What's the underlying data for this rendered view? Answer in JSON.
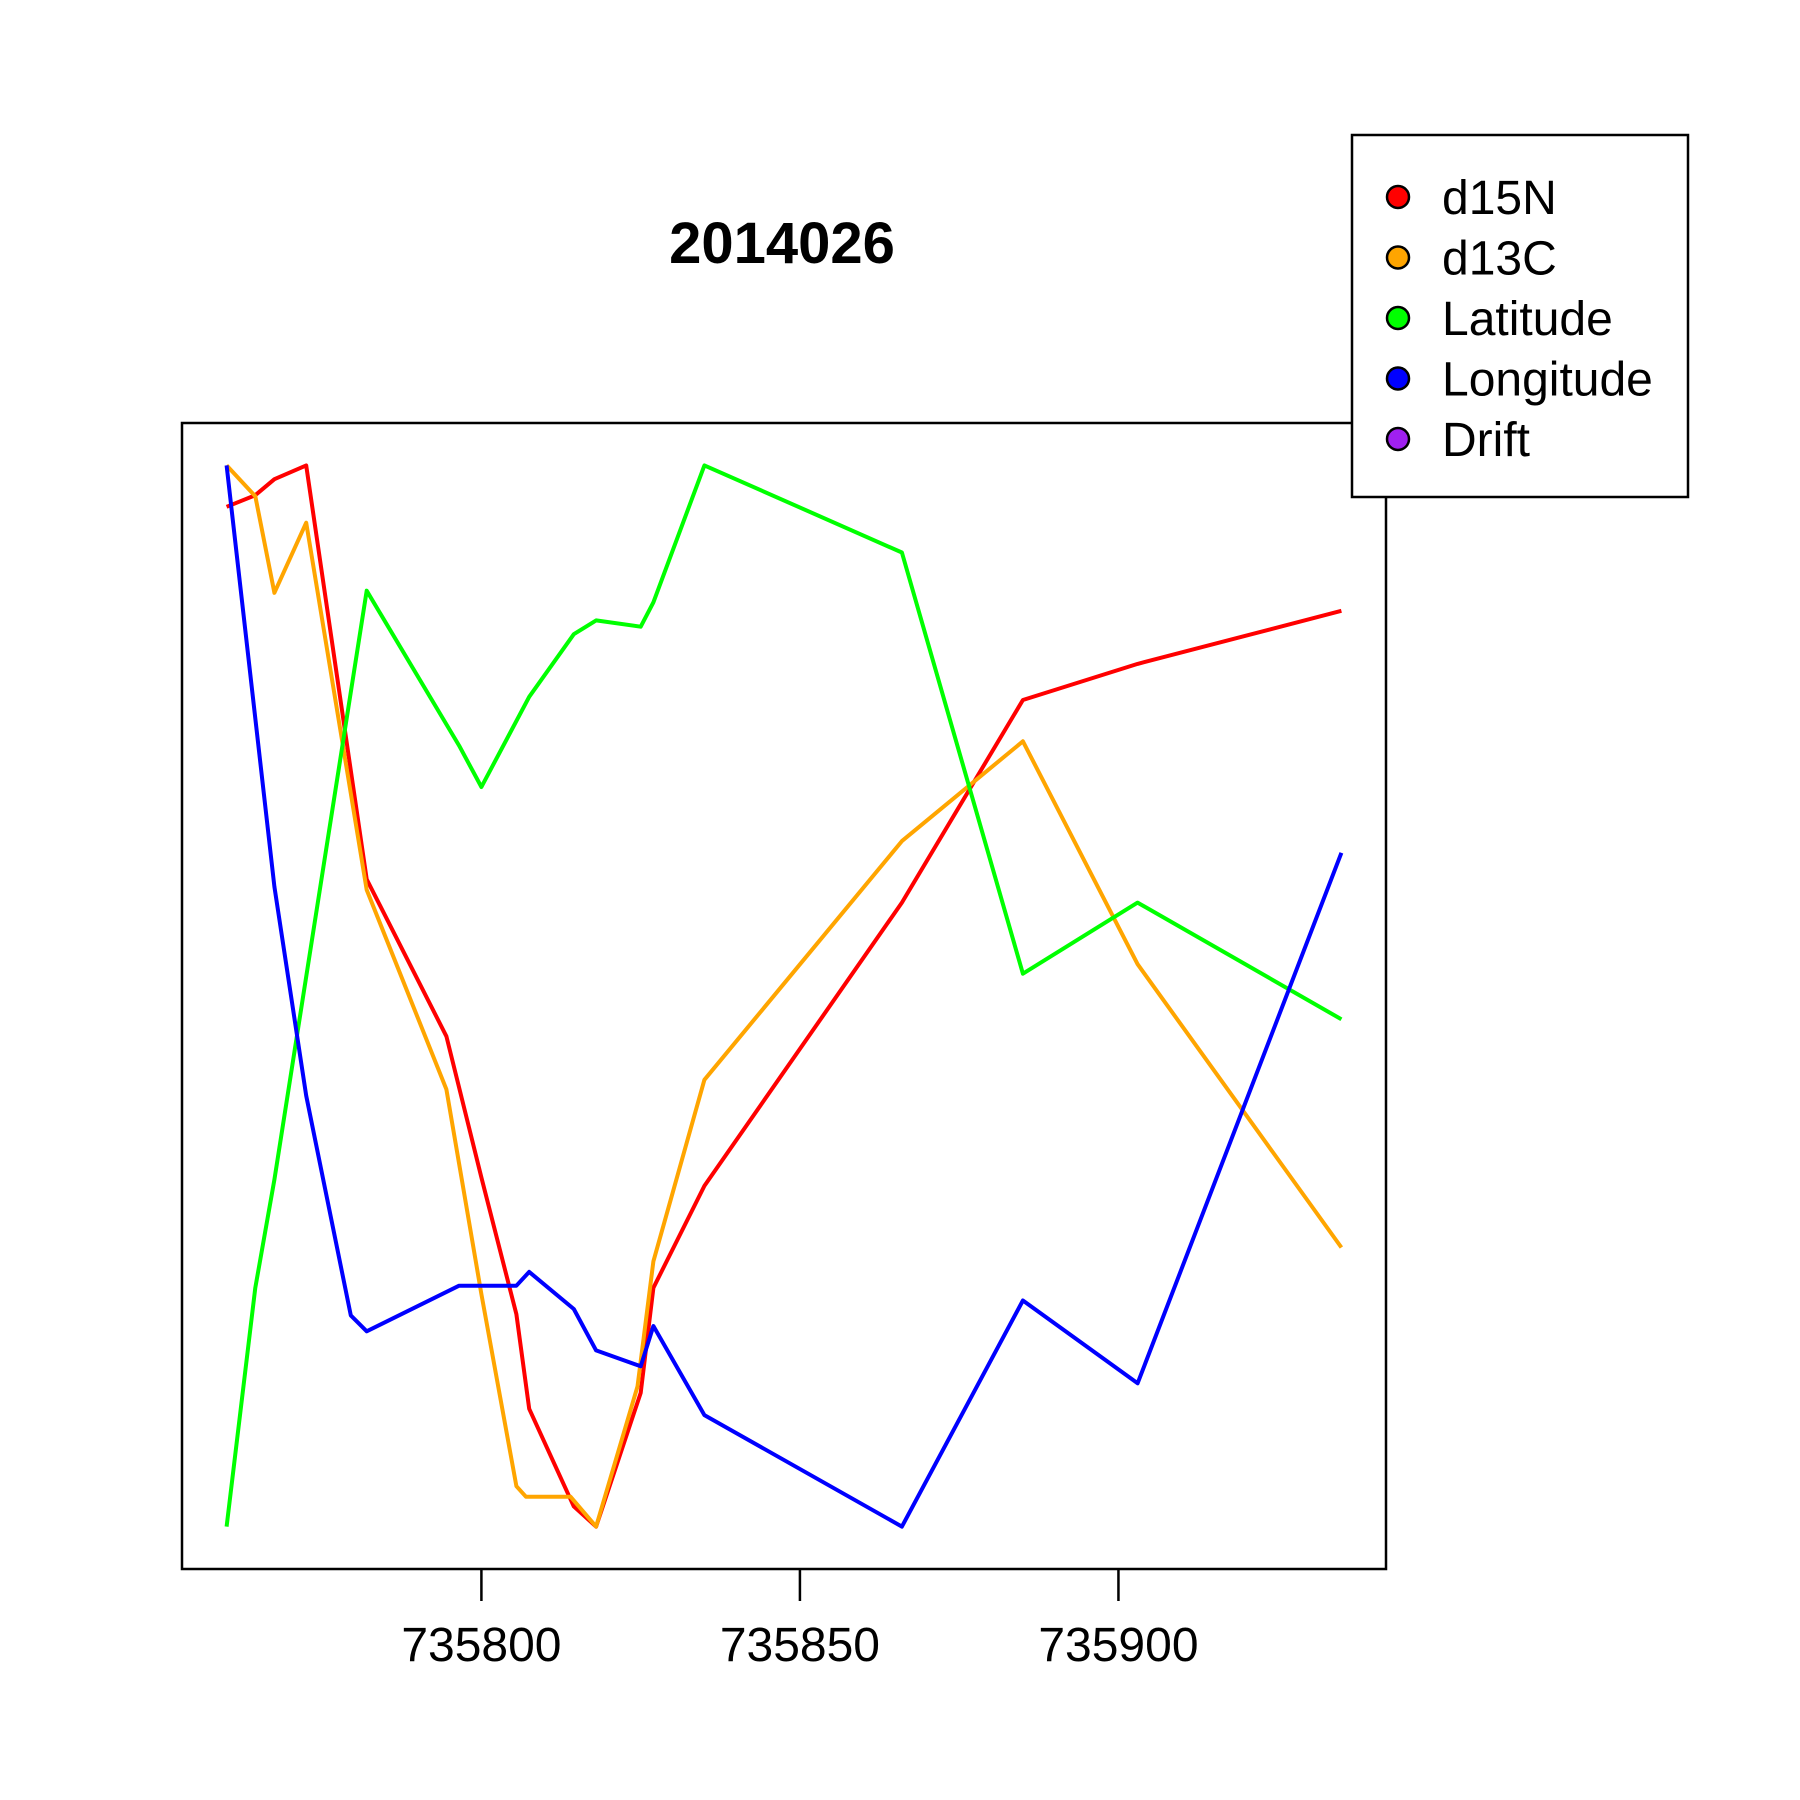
{
  "chart_data": {
    "type": "line",
    "title": "2014026",
    "xlabel": "",
    "ylabel": "",
    "xlim": [
      735753.0,
      735942.0
    ],
    "ylim": [
      -0.04,
      1.04
    ],
    "x_ticks": [
      {
        "value": 735800,
        "label": "735800"
      },
      {
        "value": 735850,
        "label": "735850"
      },
      {
        "value": 735900,
        "label": "735900"
      }
    ],
    "y_axis_shown": false,
    "grid": false,
    "legend_position": "top-right",
    "legend": [
      {
        "name": "d15N",
        "color": "#FF0000"
      },
      {
        "name": "d13C",
        "color": "#FFA500"
      },
      {
        "name": "Latitude",
        "color": "#00FF00"
      },
      {
        "name": "Longitude",
        "color": "#0000FF"
      },
      {
        "name": "Drift",
        "color": "#A020F0"
      }
    ],
    "series": [
      {
        "name": "d15N",
        "color": "#FF0000",
        "points": [
          [
            735760.0,
            0.961
          ],
          [
            735764.5,
            0.972
          ],
          [
            735767.5,
            0.987
          ],
          [
            735772.5,
            1.0
          ],
          [
            735782.0,
            0.61
          ],
          [
            735794.5,
            0.462
          ],
          [
            735800.0,
            0.329
          ],
          [
            735805.5,
            0.2
          ],
          [
            735807.5,
            0.111
          ],
          [
            735814.5,
            0.019
          ],
          [
            735818.0,
            0.0
          ],
          [
            735825.0,
            0.126
          ],
          [
            735827.0,
            0.225
          ],
          [
            735835.0,
            0.321
          ],
          [
            735866.0,
            0.588
          ],
          [
            735885.0,
            0.779
          ],
          [
            735903.0,
            0.813
          ],
          [
            735935.0,
            0.863
          ]
        ]
      },
      {
        "name": "d13C",
        "color": "#FFA500",
        "points": [
          [
            735760.0,
            1.0
          ],
          [
            735764.5,
            0.971
          ],
          [
            735767.5,
            0.88
          ],
          [
            735772.5,
            0.946
          ],
          [
            735782.0,
            0.6
          ],
          [
            735794.5,
            0.412
          ],
          [
            735800.0,
            0.219
          ],
          [
            735805.5,
            0.038
          ],
          [
            735807.0,
            0.028
          ],
          [
            735814.0,
            0.028
          ],
          [
            735818.0,
            0.0
          ],
          [
            735824.5,
            0.132
          ],
          [
            735827.0,
            0.25
          ],
          [
            735835.0,
            0.421
          ],
          [
            735866.0,
            0.646
          ],
          [
            735885.0,
            0.74
          ],
          [
            735903.0,
            0.53
          ],
          [
            735935.0,
            0.263
          ]
        ]
      },
      {
        "name": "Latitude",
        "color": "#00FF00",
        "points": [
          [
            735760.0,
            0.0
          ],
          [
            735764.5,
            0.225
          ],
          [
            735767.5,
            0.327
          ],
          [
            735782.0,
            0.882
          ],
          [
            735796.5,
            0.736
          ],
          [
            735800.0,
            0.697
          ],
          [
            735807.5,
            0.782
          ],
          [
            735814.5,
            0.841
          ],
          [
            735818.0,
            0.854
          ],
          [
            735825.0,
            0.848
          ],
          [
            735827.0,
            0.871
          ],
          [
            735835.0,
            1.0
          ],
          [
            735866.0,
            0.918
          ],
          [
            735885.0,
            0.521
          ],
          [
            735903.0,
            0.588
          ],
          [
            735935.0,
            0.478
          ]
        ]
      },
      {
        "name": "Longitude",
        "color": "#0000FF",
        "points": [
          [
            735760.0,
            1.0
          ],
          [
            735767.5,
            0.603
          ],
          [
            735772.5,
            0.406
          ],
          [
            735779.5,
            0.199
          ],
          [
            735782.0,
            0.184
          ],
          [
            735796.5,
            0.227
          ],
          [
            735805.5,
            0.227
          ],
          [
            735807.5,
            0.24
          ],
          [
            735814.5,
            0.205
          ],
          [
            735818.0,
            0.166
          ],
          [
            735825.0,
            0.151
          ],
          [
            735827.0,
            0.189
          ],
          [
            735835.0,
            0.105
          ],
          [
            735866.0,
            0.0
          ],
          [
            735885.0,
            0.213
          ],
          [
            735903.0,
            0.135
          ],
          [
            735935.0,
            0.635
          ]
        ]
      }
    ]
  }
}
